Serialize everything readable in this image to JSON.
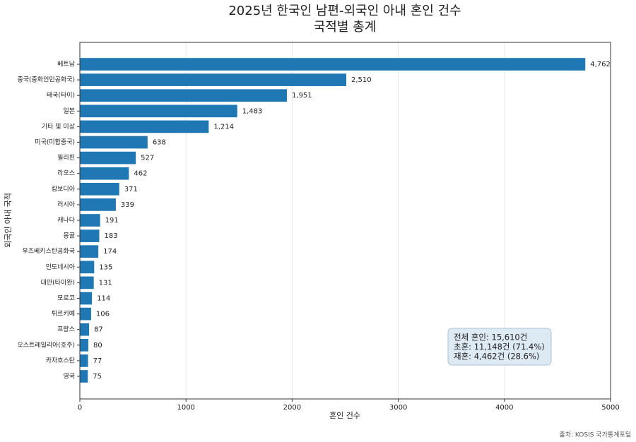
{
  "chart_data": {
    "type": "barh",
    "title": "2025년 한국인 남편-외국인 아내 혼인 건수",
    "subtitle": "국적별 총계",
    "xlabel": "혼인 건수",
    "ylabel": "외국인 아내 국적",
    "categories": [
      "베트남",
      "중국(중화인민공화국)",
      "태국(타이)",
      "일본",
      "기타 및 미상",
      "미국(미합중국)",
      "필리핀",
      "라오스",
      "캄보디아",
      "러시아",
      "캐나다",
      "몽골",
      "우즈베키스탄공화국",
      "인도네시아",
      "대만(타이완)",
      "모로코",
      "튀르키예",
      "프랑스",
      "오스트레일리아(호주)",
      "카자흐스탄",
      "영국"
    ],
    "values": [
      4762,
      2510,
      1951,
      1483,
      1214,
      638,
      527,
      462,
      371,
      339,
      191,
      183,
      174,
      135,
      131,
      114,
      106,
      87,
      80,
      77,
      75
    ],
    "value_labels": [
      "4,762",
      "2,510",
      "1,951",
      "1,483",
      "1,214",
      "638",
      "527",
      "462",
      "371",
      "339",
      "191",
      "183",
      "174",
      "135",
      "131",
      "114",
      "106",
      "87",
      "80",
      "77",
      "75"
    ],
    "color": "#1f77b4",
    "xlim": [
      0,
      5000
    ],
    "xticks": [
      0,
      1000,
      2000,
      3000,
      4000,
      5000
    ],
    "grid": true,
    "annotation": [
      "전체 혼인: 15,610건",
      "초혼: 11,148건 (71.4%)",
      "재혼: 4,462건 (28.6%)"
    ],
    "source": "출처: KOSIS 국가통계포털"
  }
}
